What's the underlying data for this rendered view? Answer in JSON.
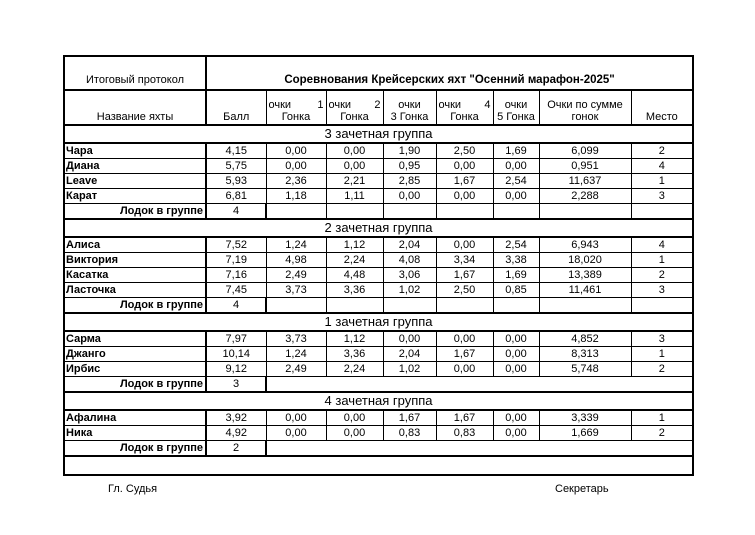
{
  "header": {
    "protocol": "Итоговый протокол",
    "title": "Соревнования Крейсерских яхт \"Осенний марафон-2025\"",
    "columns": {
      "name": "Название яхты",
      "score": "Балл",
      "race1": [
        "очки",
        "1",
        "Гонка"
      ],
      "race2": [
        "очки",
        "2",
        "Гонка"
      ],
      "race3": [
        "очки",
        "3 Гонка"
      ],
      "race4": [
        "очки",
        "4",
        "Гонка"
      ],
      "race5": [
        "очки",
        "5 Гонка"
      ],
      "total": "Очки по сумме гонок",
      "place": "Место"
    }
  },
  "count_label": "Лодок в группе",
  "groups": [
    {
      "title": "3 зачетная группа",
      "count": "4",
      "split": true,
      "rows": [
        [
          "Чара",
          "4,15",
          "0,00",
          "0,00",
          "1,90",
          "2,50",
          "1,69",
          "6,099",
          "2"
        ],
        [
          "Диана",
          "5,75",
          "0,00",
          "0,00",
          "0,95",
          "0,00",
          "0,00",
          "0,951",
          "4"
        ],
        [
          "Leave",
          "5,93",
          "2,36",
          "2,21",
          "2,85",
          "1,67",
          "2,54",
          "11,637",
          "1"
        ],
        [
          "Карат",
          "6,81",
          "1,18",
          "1,11",
          "0,00",
          "0,00",
          "0,00",
          "2,288",
          "3"
        ]
      ]
    },
    {
      "title": "2 зачетная группа",
      "count": "4",
      "split": true,
      "rows": [
        [
          "Алиса",
          "7,52",
          "1,24",
          "1,12",
          "2,04",
          "0,00",
          "2,54",
          "6,943",
          "4"
        ],
        [
          "Виктория",
          "7,19",
          "4,98",
          "2,24",
          "4,08",
          "3,34",
          "3,38",
          "18,020",
          "1"
        ],
        [
          "Касатка",
          "7,16",
          "2,49",
          "4,48",
          "3,06",
          "1,67",
          "1,69",
          "13,389",
          "2"
        ],
        [
          "Ласточка",
          "7,45",
          "3,73",
          "3,36",
          "1,02",
          "2,50",
          "0,85",
          "11,461",
          "3"
        ]
      ]
    },
    {
      "title": "1 зачетная группа",
      "count": "3",
      "split": false,
      "rows": [
        [
          "Сарма",
          "7,97",
          "3,73",
          "1,12",
          "0,00",
          "0,00",
          "0,00",
          "4,852",
          "3"
        ],
        [
          "Джанго",
          "10,14",
          "1,24",
          "3,36",
          "2,04",
          "1,67",
          "0,00",
          "8,313",
          "1"
        ],
        [
          "Ирбис",
          "9,12",
          "2,49",
          "2,24",
          "1,02",
          "0,00",
          "0,00",
          "5,748",
          "2"
        ]
      ]
    },
    {
      "title": "4 зачетная группа",
      "count": "2",
      "split": false,
      "rows": [
        [
          "Афалина",
          "3,92",
          "0,00",
          "0,00",
          "1,67",
          "1,67",
          "0,00",
          "3,339",
          "1"
        ],
        [
          "Ника",
          "4,92",
          "0,00",
          "0,00",
          "0,83",
          "0,83",
          "0,00",
          "1,669",
          "2"
        ]
      ]
    }
  ],
  "footer": {
    "judge": "Гл. Судья",
    "secretary": "Секретарь"
  }
}
